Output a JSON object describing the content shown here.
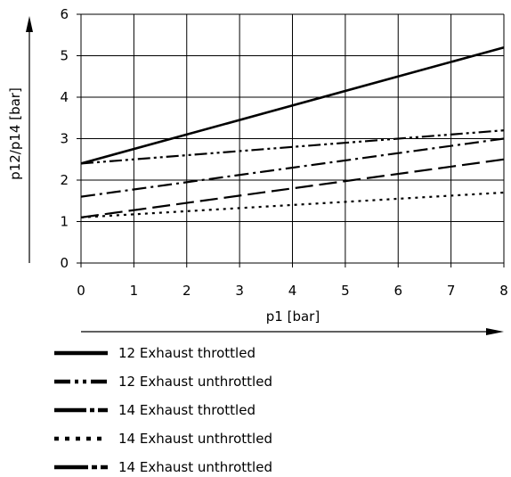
{
  "chart_data": {
    "type": "line",
    "xlabel": "p1 [bar]",
    "ylabel": "p12/p14 [bar]",
    "xlim": [
      0,
      8
    ],
    "ylim": [
      0,
      6
    ],
    "x_ticks": [
      0,
      1,
      2,
      3,
      4,
      5,
      6,
      7,
      8
    ],
    "y_ticks": [
      0,
      1,
      2,
      3,
      4,
      5,
      6
    ],
    "grid": true,
    "legend_position": "bottom",
    "line_color": "#000000",
    "series": [
      {
        "name": "12 Exhaust throttled",
        "style": "solid",
        "x": [
          0,
          8
        ],
        "y": [
          2.4,
          5.2
        ]
      },
      {
        "name": "12 Exhaust unthrottled",
        "style": "dash-dot-dot",
        "x": [
          0,
          8
        ],
        "y": [
          2.4,
          3.2
        ]
      },
      {
        "name": "14 Exhaust throttled",
        "style": "dash-dot",
        "x": [
          0,
          8
        ],
        "y": [
          1.6,
          3.0
        ]
      },
      {
        "name": "14 Exhaust unthrottled",
        "style": "dotted",
        "x": [
          0,
          8
        ],
        "y": [
          1.1,
          1.7
        ]
      },
      {
        "name": "14 Exhaust unthrottled",
        "style": "long-dash",
        "x": [
          0,
          8
        ],
        "y": [
          1.1,
          2.5
        ]
      }
    ]
  }
}
